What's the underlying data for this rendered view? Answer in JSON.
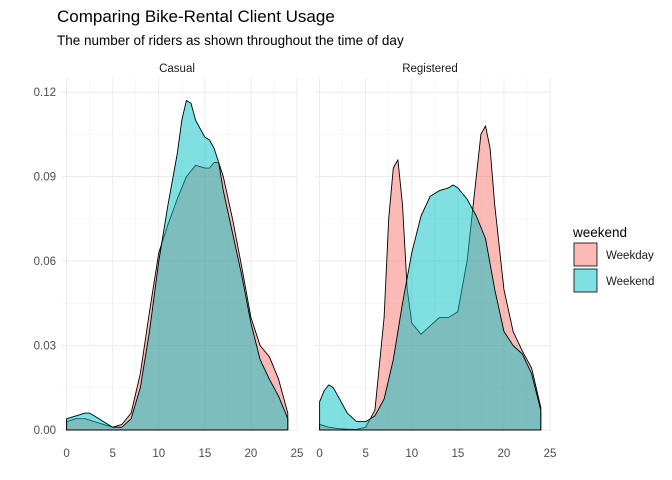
{
  "title": "Comparing Bike-Rental Client Usage",
  "subtitle": "The number of riders as shown throughout the time of day",
  "legend": {
    "title": "weekend",
    "placement": "right",
    "items": [
      {
        "label": "Weekday",
        "color": "#F8766D"
      },
      {
        "label": "Weekend",
        "color": "#00BFC4"
      }
    ]
  },
  "chart_data": {
    "type": "area",
    "subtype": "density",
    "facet_labels": [
      "Casual",
      "Registered"
    ],
    "xlim": [
      -0.5,
      25
    ],
    "ylim": [
      0,
      0.125
    ],
    "x_ticks": [
      0,
      5,
      10,
      15,
      20,
      25
    ],
    "y_ticks": [
      0,
      0.03,
      0.06,
      0.09,
      0.12
    ],
    "y_tick_labels": [
      "0.00",
      "0.03",
      "0.06",
      "0.09",
      "0.12"
    ],
    "grid": true,
    "fill_alpha": 0.5,
    "outline_color": "#000000",
    "panels": [
      {
        "facet": "Casual",
        "series": [
          {
            "name": "Weekday",
            "x": [
              0,
              1,
              2,
              3,
              4,
              5,
              6,
              7,
              8,
              9,
              10,
              10.5,
              11,
              12,
              13,
              14,
              15,
              15.5,
              16,
              16.5,
              17,
              18,
              19,
              20,
              21,
              22,
              23,
              24
            ],
            "y": [
              0.003,
              0.004,
              0.004,
              0.003,
              0.002,
              0.001,
              0.002,
              0.006,
              0.02,
              0.042,
              0.063,
              0.068,
              0.073,
              0.082,
              0.09,
              0.094,
              0.093,
              0.093,
              0.095,
              0.095,
              0.09,
              0.075,
              0.058,
              0.04,
              0.03,
              0.026,
              0.018,
              0.006
            ]
          },
          {
            "name": "Weekend",
            "x": [
              0,
              1,
              2,
              2.5,
              3,
              4,
              5,
              6,
              7,
              8,
              9,
              10,
              11,
              12,
              12.5,
              13,
              13.5,
              14,
              15,
              15.5,
              16,
              16.5,
              17,
              18,
              19,
              20,
              21,
              22,
              23,
              24
            ],
            "y": [
              0.004,
              0.005,
              0.006,
              0.006,
              0.005,
              0.003,
              0.001,
              0.001,
              0.004,
              0.015,
              0.035,
              0.06,
              0.08,
              0.098,
              0.11,
              0.117,
              0.116,
              0.11,
              0.104,
              0.103,
              0.1,
              0.095,
              0.085,
              0.07,
              0.055,
              0.038,
              0.025,
              0.018,
              0.012,
              0.004
            ]
          }
        ]
      },
      {
        "facet": "Registered",
        "series": [
          {
            "name": "Weekday",
            "x": [
              0,
              1,
              2,
              3,
              4,
              5,
              6,
              7,
              7.5,
              8,
              8.5,
              9,
              9.5,
              10,
              11,
              12,
              13,
              14,
              15,
              16,
              17,
              17.5,
              18,
              18.5,
              19,
              20,
              21,
              22,
              23,
              24
            ],
            "y": [
              0.002,
              0.001,
              0.0005,
              0.0003,
              0.0002,
              0.001,
              0.007,
              0.04,
              0.075,
              0.093,
              0.096,
              0.08,
              0.05,
              0.038,
              0.034,
              0.037,
              0.04,
              0.04,
              0.042,
              0.06,
              0.09,
              0.105,
              0.108,
              0.1,
              0.08,
              0.05,
              0.035,
              0.028,
              0.022,
              0.008
            ]
          },
          {
            "name": "Weekend",
            "x": [
              0,
              0.5,
              1,
              1.5,
              2,
              3,
              4,
              5,
              6,
              7,
              8,
              9,
              10,
              11,
              12,
              13,
              14,
              14.5,
              15,
              16,
              17,
              18,
              19,
              20,
              21,
              22,
              23,
              24
            ],
            "y": [
              0.01,
              0.014,
              0.016,
              0.015,
              0.012,
              0.006,
              0.003,
              0.003,
              0.005,
              0.011,
              0.025,
              0.045,
              0.063,
              0.076,
              0.083,
              0.085,
              0.086,
              0.087,
              0.086,
              0.082,
              0.076,
              0.068,
              0.05,
              0.035,
              0.03,
              0.027,
              0.02,
              0.007
            ]
          }
        ]
      }
    ]
  }
}
